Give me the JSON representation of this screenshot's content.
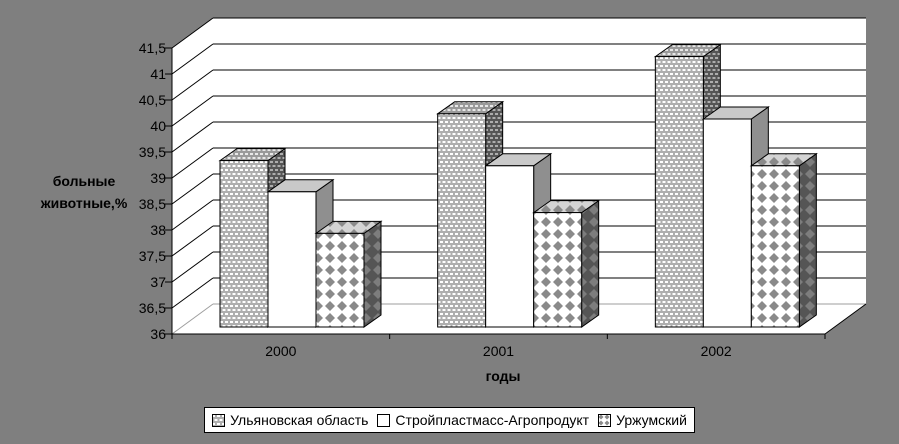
{
  "window": {
    "background": "#7F7F7F"
  },
  "chart_data": {
    "type": "bar",
    "projection": "3d",
    "title": "",
    "categories": [
      "2000",
      "2001",
      "2002"
    ],
    "series": [
      {
        "name": "Ульяновская область",
        "pattern": "gray-dotted",
        "values": [
          39.2,
          40.1,
          41.2
        ]
      },
      {
        "name": "Стройпластмасс-Агропродукт",
        "pattern": "white-solid",
        "values": [
          38.6,
          39.1,
          40.0
        ]
      },
      {
        "name": "Уржумский",
        "pattern": "gray-diamond",
        "values": [
          37.8,
          38.2,
          39.1
        ]
      }
    ],
    "xlabel": "годы",
    "ylabel": "больные животные,%",
    "ylabel_lines": [
      "больные",
      "животные,%"
    ],
    "y_axis": {
      "min": 36,
      "max": 41.5,
      "step": 0.5,
      "tick_labels_top_to_bottom": [
        "41,5",
        "41",
        "40,5",
        "40",
        "39,5",
        "39",
        "38,5",
        "38",
        "37,5",
        "37",
        "36,5",
        "36"
      ]
    },
    "ylim": [
      36,
      41.5
    ],
    "grid": true,
    "legend": {
      "position": "bottom",
      "entries": [
        "Ульяновская область",
        "Стройпластмасс-Агропродукт",
        "Уржумский"
      ]
    }
  },
  "colors": {
    "background": "#7F7F7F",
    "plot_wall": "#FFFFFF",
    "gridline": "#000000",
    "base_gridline_gray": "#9E9E9E",
    "text": "#000000",
    "legend_background": "#FFFFFF"
  }
}
